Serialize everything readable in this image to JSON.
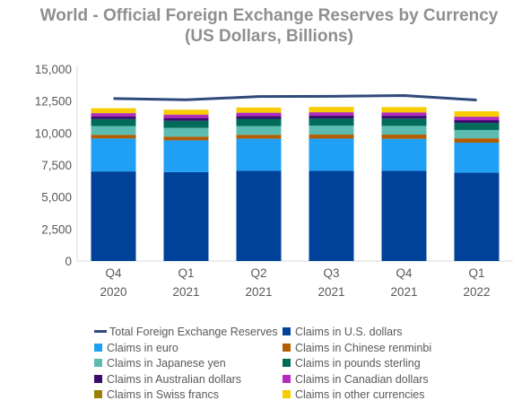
{
  "chart_data": {
    "type": "bar",
    "title": "World - Official Foreign Exchange Reserves by Currency",
    "subtitle": "(US Dollars, Billions)",
    "categories": [
      [
        "Q4",
        "2020"
      ],
      [
        "Q1",
        "2021"
      ],
      [
        "Q2",
        "2021"
      ],
      [
        "Q3",
        "2021"
      ],
      [
        "Q4",
        "2021"
      ],
      [
        "Q1",
        "2022"
      ]
    ],
    "ylim": [
      0,
      15000
    ],
    "yticks": [
      0,
      2500,
      5000,
      7500,
      10000,
      12500,
      15000
    ],
    "ytick_labels": [
      "0",
      "2,500",
      "5,000",
      "7,500",
      "10,000",
      "12,500",
      "15,000"
    ],
    "grid": false,
    "stacked": true,
    "legend_position": "bottom",
    "series": [
      {
        "name": "Claims in U.S. dollars",
        "color": "#004299",
        "values": [
          7000,
          6950,
          7050,
          7050,
          7050,
          6900
        ]
      },
      {
        "name": "Claims in euro",
        "color": "#1fa0f5",
        "values": [
          2580,
          2480,
          2510,
          2520,
          2500,
          2350
        ]
      },
      {
        "name": "Claims in Chinese renminbi",
        "color": "#b35d00",
        "values": [
          270,
          290,
          300,
          310,
          330,
          340
        ]
      },
      {
        "name": "Claims in Japanese yen",
        "color": "#5dbcb2",
        "values": [
          700,
          690,
          690,
          700,
          680,
          650
        ]
      },
      {
        "name": "Claims in pounds sterling",
        "color": "#006b59",
        "values": [
          550,
          550,
          560,
          560,
          570,
          550
        ]
      },
      {
        "name": "Claims in Australian dollars",
        "color": "#3b0c6e",
        "values": [
          210,
          215,
          220,
          220,
          220,
          215
        ]
      },
      {
        "name": "Claims in Canadian dollars",
        "color": "#b52bbd",
        "values": [
          240,
          250,
          255,
          260,
          250,
          265
        ]
      },
      {
        "name": "Claims in Swiss francs",
        "color": "#9c7f00",
        "values": [
          20,
          20,
          20,
          20,
          20,
          20
        ]
      },
      {
        "name": "Claims in other currencies",
        "color": "#f8cc00",
        "values": [
          370,
          380,
          390,
          400,
          410,
          410
        ]
      }
    ],
    "line_series": {
      "name": "Total Foreign Exchange Reserves",
      "color": "#2e4a7a",
      "values": [
        12700,
        12600,
        12850,
        12870,
        12930,
        12580
      ]
    }
  },
  "legend_items": [
    {
      "label": "Total Foreign Exchange Reserves",
      "color": "#2e4a7a",
      "kind": "line"
    },
    {
      "label": "Claims in U.S. dollars",
      "color": "#004299",
      "kind": "box"
    },
    {
      "label": "Claims in euro",
      "color": "#1fa0f5",
      "kind": "box"
    },
    {
      "label": "Claims in Chinese renminbi",
      "color": "#b35d00",
      "kind": "box"
    },
    {
      "label": "Claims in Japanese yen",
      "color": "#5dbcb2",
      "kind": "box"
    },
    {
      "label": "Claims in pounds sterling",
      "color": "#006b59",
      "kind": "box"
    },
    {
      "label": "Claims in Australian dollars",
      "color": "#3b0c6e",
      "kind": "box"
    },
    {
      "label": "Claims in Canadian dollars",
      "color": "#b52bbd",
      "kind": "box"
    },
    {
      "label": "Claims in Swiss francs",
      "color": "#9c7f00",
      "kind": "box"
    },
    {
      "label": "Claims in other currencies",
      "color": "#f8cc00",
      "kind": "box"
    }
  ]
}
